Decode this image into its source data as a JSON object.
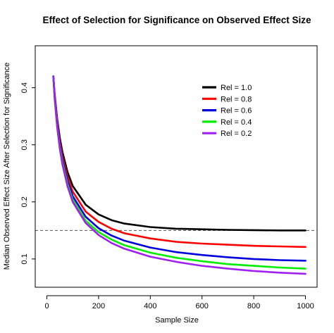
{
  "chart_data": {
    "type": "line",
    "title": "Effect of Selection for Significance on Observed Effect Size",
    "xlabel": "Sample Size",
    "ylabel": "Median Observed Effect Size After Selection for Significance",
    "xlim": [
      0,
      1000
    ],
    "ylim": [
      0.05,
      0.45
    ],
    "x_ticks": [
      0,
      200,
      400,
      600,
      800,
      1000
    ],
    "x_tick_labels": [
      "0",
      "200",
      "400",
      "600",
      "800",
      "1000"
    ],
    "y_ticks": [
      0.1,
      0.2,
      0.3,
      0.4
    ],
    "y_tick_labels": [
      "0.1",
      "0.2",
      "0.3",
      "0.4"
    ],
    "grid": false,
    "legend_position": "top-right",
    "reference_line": {
      "y": 0.15,
      "style": "dashed",
      "color": "#555555"
    },
    "x": [
      25,
      30,
      40,
      50,
      60,
      80,
      100,
      150,
      200,
      250,
      300,
      400,
      500,
      600,
      700,
      800,
      900,
      1000
    ],
    "series": [
      {
        "name": "Rel = 1.0",
        "color": "#000000",
        "values": [
          0.42,
          0.39,
          0.345,
          0.312,
          0.288,
          0.252,
          0.228,
          0.195,
          0.178,
          0.168,
          0.162,
          0.156,
          0.153,
          0.152,
          0.151,
          0.1505,
          0.15,
          0.15
        ]
      },
      {
        "name": "Rel = 0.8",
        "color": "#ff0000",
        "values": [
          0.42,
          0.388,
          0.34,
          0.305,
          0.28,
          0.243,
          0.218,
          0.183,
          0.165,
          0.153,
          0.145,
          0.136,
          0.13,
          0.127,
          0.125,
          0.123,
          0.122,
          0.121
        ]
      },
      {
        "name": "Rel = 0.6",
        "color": "#0000dd",
        "values": [
          0.42,
          0.386,
          0.336,
          0.3,
          0.274,
          0.236,
          0.21,
          0.174,
          0.154,
          0.141,
          0.132,
          0.12,
          0.112,
          0.107,
          0.103,
          0.1,
          0.098,
          0.097
        ]
      },
      {
        "name": "Rel = 0.4",
        "color": "#00ee00",
        "values": [
          0.42,
          0.384,
          0.333,
          0.296,
          0.27,
          0.231,
          0.204,
          0.167,
          0.147,
          0.134,
          0.124,
          0.111,
          0.102,
          0.096,
          0.091,
          0.088,
          0.085,
          0.083
        ]
      },
      {
        "name": "Rel = 0.2",
        "color": "#a020f0",
        "values": [
          0.42,
          0.382,
          0.33,
          0.293,
          0.266,
          0.227,
          0.2,
          0.163,
          0.142,
          0.128,
          0.118,
          0.104,
          0.095,
          0.088,
          0.083,
          0.079,
          0.076,
          0.074
        ]
      }
    ]
  }
}
